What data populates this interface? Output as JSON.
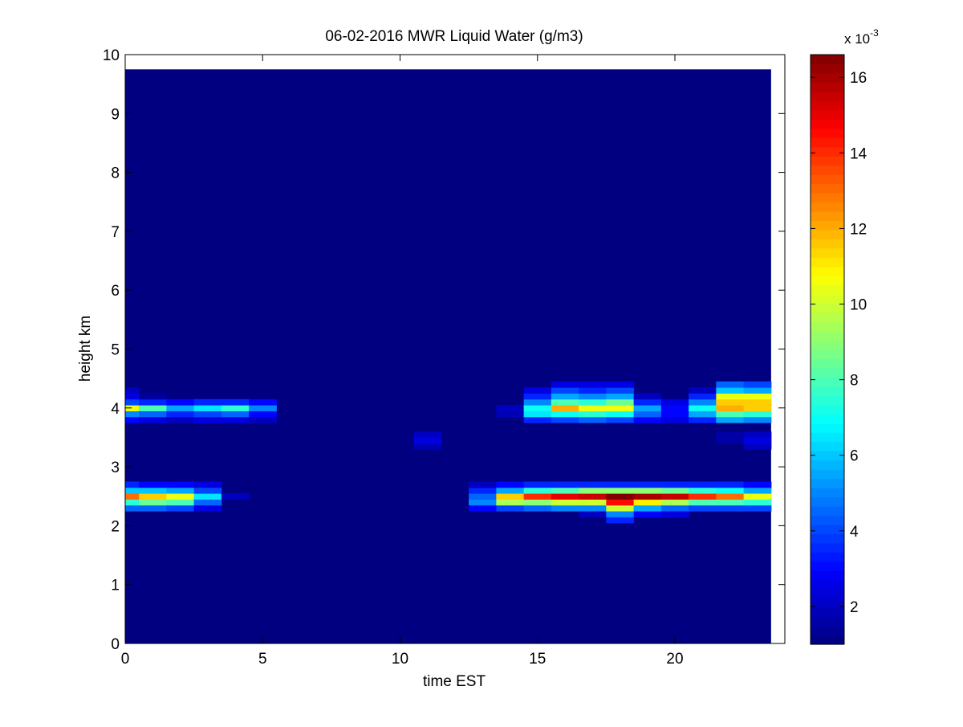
{
  "chart_data": {
    "type": "heatmap",
    "title": "06-02-2016 MWR Liquid Water (g/m3)",
    "xlabel": "time EST",
    "ylabel": "height km",
    "xlim": [
      0,
      24
    ],
    "ylim": [
      0,
      10
    ],
    "x_ticks": [
      0,
      5,
      10,
      15,
      20
    ],
    "y_ticks": [
      0,
      1,
      2,
      3,
      4,
      5,
      6,
      7,
      8,
      9,
      10
    ],
    "colorbar": {
      "colormap": "jet",
      "range": [
        1.0,
        16.6
      ],
      "ticks": [
        2,
        4,
        6,
        8,
        10,
        12,
        14,
        16
      ],
      "exponent_label": "x 10",
      "exponent_power": "-3"
    },
    "background_value": 1.0,
    "grid": false,
    "time_step_hours": 1,
    "data_extent": {
      "x_max": 23.5,
      "y_max": 9.75
    },
    "height_levels_km": [
      2.1,
      2.2,
      2.3,
      2.4,
      2.5,
      2.6,
      2.7,
      3.35,
      3.45,
      3.55,
      3.8,
      3.9,
      4.0,
      4.1,
      4.2,
      4.3,
      4.4
    ],
    "cells": [
      {
        "t": 0,
        "h": [
          [
            2.3,
            4.5
          ],
          [
            2.4,
            7.5
          ],
          [
            2.5,
            13.0
          ],
          [
            2.6,
            6.0
          ],
          [
            2.7,
            3.5
          ],
          [
            3.8,
            3.0
          ],
          [
            3.9,
            5.0
          ],
          [
            4.0,
            10.5
          ],
          [
            4.1,
            4.0
          ],
          [
            4.2,
            2.5
          ],
          [
            4.3,
            2.0
          ]
        ]
      },
      {
        "t": 1,
        "h": [
          [
            2.3,
            4.5
          ],
          [
            2.4,
            8.5
          ],
          [
            2.5,
            11.5
          ],
          [
            2.6,
            6.0
          ],
          [
            2.7,
            3.0
          ],
          [
            3.8,
            2.5
          ],
          [
            3.9,
            4.5
          ],
          [
            4.0,
            8.0
          ],
          [
            4.1,
            3.5
          ],
          [
            4.2,
            1.5
          ]
        ]
      },
      {
        "t": 2,
        "h": [
          [
            2.3,
            4.0
          ],
          [
            2.4,
            8.0
          ],
          [
            2.5,
            10.5
          ],
          [
            2.6,
            5.5
          ],
          [
            2.7,
            3.0
          ],
          [
            3.8,
            2.0
          ],
          [
            3.9,
            3.5
          ],
          [
            4.0,
            5.5
          ],
          [
            4.1,
            3.0
          ]
        ]
      },
      {
        "t": 3,
        "h": [
          [
            2.3,
            2.5
          ],
          [
            2.4,
            4.5
          ],
          [
            2.5,
            6.5
          ],
          [
            2.6,
            4.0
          ],
          [
            2.7,
            2.5
          ],
          [
            3.8,
            2.5
          ],
          [
            3.9,
            4.0
          ],
          [
            4.0,
            6.5
          ],
          [
            4.1,
            3.5
          ]
        ]
      },
      {
        "t": 4,
        "h": [
          [
            2.5,
            2.0
          ],
          [
            3.8,
            2.5
          ],
          [
            3.9,
            4.5
          ],
          [
            4.0,
            7.5
          ],
          [
            4.1,
            3.5
          ]
        ]
      },
      {
        "t": 5,
        "h": [
          [
            3.8,
            2.0
          ],
          [
            3.9,
            3.0
          ],
          [
            4.0,
            5.0
          ],
          [
            4.1,
            3.0
          ]
        ]
      },
      {
        "t": 11,
        "h": [
          [
            3.35,
            1.8
          ],
          [
            3.45,
            2.5
          ],
          [
            3.55,
            2.0
          ]
        ]
      },
      {
        "t": 13,
        "h": [
          [
            2.3,
            3.0
          ],
          [
            2.4,
            5.0
          ],
          [
            2.5,
            4.5
          ],
          [
            2.6,
            3.5
          ],
          [
            2.7,
            2.0
          ]
        ]
      },
      {
        "t": 14,
        "h": [
          [
            2.3,
            4.0
          ],
          [
            2.4,
            9.5
          ],
          [
            2.5,
            11.5
          ],
          [
            2.6,
            5.5
          ],
          [
            2.7,
            3.0
          ],
          [
            3.9,
            1.8
          ],
          [
            4.0,
            2.0
          ]
        ]
      },
      {
        "t": 15,
        "h": [
          [
            2.3,
            4.5
          ],
          [
            2.4,
            9.0
          ],
          [
            2.5,
            14.0
          ],
          [
            2.6,
            7.5
          ],
          [
            2.7,
            3.5
          ],
          [
            3.8,
            3.5
          ],
          [
            3.9,
            6.5
          ],
          [
            4.0,
            7.0
          ],
          [
            4.1,
            5.0
          ],
          [
            4.2,
            3.5
          ],
          [
            4.3,
            2.5
          ]
        ]
      },
      {
        "t": 16,
        "h": [
          [
            2.3,
            5.0
          ],
          [
            2.4,
            10.0
          ],
          [
            2.5,
            15.0
          ],
          [
            2.6,
            8.0
          ],
          [
            2.7,
            3.5
          ],
          [
            3.8,
            4.0
          ],
          [
            3.9,
            7.0
          ],
          [
            4.0,
            12.0
          ],
          [
            4.1,
            8.0
          ],
          [
            4.2,
            5.5
          ],
          [
            4.3,
            4.0
          ],
          [
            4.4,
            2.5
          ]
        ]
      },
      {
        "t": 17,
        "h": [
          [
            2.2,
            2.0
          ],
          [
            2.3,
            5.0
          ],
          [
            2.4,
            10.0
          ],
          [
            2.5,
            15.5
          ],
          [
            2.6,
            9.0
          ],
          [
            2.7,
            3.5
          ],
          [
            3.8,
            4.5
          ],
          [
            3.9,
            7.5
          ],
          [
            4.0,
            10.5
          ],
          [
            4.1,
            7.5
          ],
          [
            4.2,
            5.0
          ],
          [
            4.3,
            3.5
          ],
          [
            4.4,
            2.5
          ]
        ]
      },
      {
        "t": 18,
        "h": [
          [
            2.1,
            3.5
          ],
          [
            2.2,
            5.0
          ],
          [
            2.3,
            10.0
          ],
          [
            2.4,
            14.5
          ],
          [
            2.5,
            16.6
          ],
          [
            2.6,
            9.0
          ],
          [
            2.7,
            3.5
          ],
          [
            3.8,
            4.0
          ],
          [
            3.9,
            7.0
          ],
          [
            4.0,
            10.5
          ],
          [
            4.1,
            8.5
          ],
          [
            4.2,
            5.5
          ],
          [
            4.3,
            4.0
          ],
          [
            4.4,
            2.5
          ]
        ]
      },
      {
        "t": 19,
        "h": [
          [
            2.2,
            3.0
          ],
          [
            2.3,
            5.5
          ],
          [
            2.4,
            11.0
          ],
          [
            2.5,
            16.0
          ],
          [
            2.6,
            9.0
          ],
          [
            2.7,
            3.5
          ],
          [
            3.8,
            3.0
          ],
          [
            3.9,
            4.5
          ],
          [
            4.0,
            5.5
          ],
          [
            4.1,
            3.5
          ],
          [
            4.2,
            2.0
          ]
        ]
      },
      {
        "t": 20,
        "h": [
          [
            2.2,
            2.5
          ],
          [
            2.3,
            4.5
          ],
          [
            2.4,
            9.5
          ],
          [
            2.5,
            15.5
          ],
          [
            2.6,
            8.5
          ],
          [
            2.7,
            3.5
          ],
          [
            3.8,
            2.5
          ],
          [
            3.9,
            3.0
          ],
          [
            4.0,
            3.0
          ],
          [
            4.1,
            2.5
          ]
        ]
      },
      {
        "t": 21,
        "h": [
          [
            2.3,
            4.0
          ],
          [
            2.4,
            8.0
          ],
          [
            2.5,
            14.0
          ],
          [
            2.6,
            7.5
          ],
          [
            2.7,
            3.5
          ],
          [
            3.8,
            3.5
          ],
          [
            3.9,
            5.5
          ],
          [
            4.0,
            7.0
          ],
          [
            4.1,
            5.0
          ],
          [
            4.2,
            3.5
          ],
          [
            4.3,
            2.0
          ]
        ]
      },
      {
        "t": 22,
        "h": [
          [
            2.3,
            4.0
          ],
          [
            2.4,
            8.0
          ],
          [
            2.5,
            13.0
          ],
          [
            2.6,
            7.0
          ],
          [
            2.7,
            3.5
          ],
          [
            3.45,
            1.6
          ],
          [
            3.55,
            1.6
          ],
          [
            3.8,
            5.5
          ],
          [
            3.9,
            8.0
          ],
          [
            4.0,
            12.0
          ],
          [
            4.1,
            11.5
          ],
          [
            4.2,
            10.5
          ],
          [
            4.3,
            6.0
          ],
          [
            4.4,
            4.5
          ]
        ]
      },
      {
        "t": 23,
        "h": [
          [
            2.3,
            4.0
          ],
          [
            2.4,
            7.5
          ],
          [
            2.5,
            10.5
          ],
          [
            2.6,
            5.5
          ],
          [
            2.7,
            3.0
          ],
          [
            3.35,
            2.0
          ],
          [
            3.45,
            2.5
          ],
          [
            3.55,
            2.0
          ],
          [
            3.8,
            5.0
          ],
          [
            3.9,
            7.5
          ],
          [
            4.0,
            11.5
          ],
          [
            4.1,
            11.5
          ],
          [
            4.2,
            10.5
          ],
          [
            4.3,
            5.5
          ],
          [
            4.4,
            4.0
          ]
        ]
      }
    ]
  }
}
